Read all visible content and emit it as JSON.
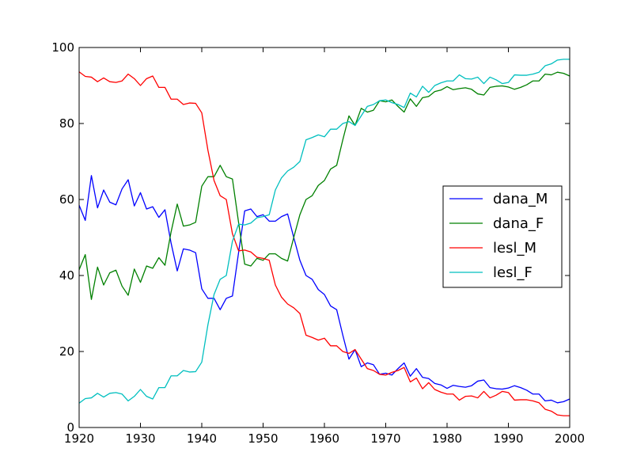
{
  "chart_data": {
    "type": "line",
    "title": "",
    "xlabel": "",
    "ylabel": "",
    "xlim": [
      1920,
      2000
    ],
    "ylim": [
      0,
      100
    ],
    "xticks": [
      1920,
      1930,
      1940,
      1950,
      1960,
      1970,
      1980,
      1990,
      2000
    ],
    "yticks": [
      0,
      20,
      40,
      60,
      80,
      100
    ],
    "grid": false,
    "legend_position": "center-right",
    "x": [
      1920,
      1921,
      1922,
      1923,
      1924,
      1925,
      1926,
      1927,
      1928,
      1929,
      1930,
      1931,
      1932,
      1933,
      1934,
      1935,
      1936,
      1937,
      1938,
      1939,
      1940,
      1941,
      1942,
      1943,
      1944,
      1945,
      1946,
      1947,
      1948,
      1949,
      1950,
      1951,
      1952,
      1953,
      1954,
      1955,
      1956,
      1957,
      1958,
      1959,
      1960,
      1961,
      1962,
      1963,
      1964,
      1965,
      1966,
      1967,
      1968,
      1969,
      1970,
      1971,
      1972,
      1973,
      1974,
      1975,
      1976,
      1977,
      1978,
      1979,
      1980,
      1981,
      1982,
      1983,
      1984,
      1985,
      1986,
      1987,
      1988,
      1989,
      1990,
      1991,
      1992,
      1993,
      1994,
      1995,
      1996,
      1997,
      1998,
      1999,
      2000
    ],
    "series": [
      {
        "name": "dana_M",
        "color": "#0000ff",
        "values": [
          58.5,
          54.5,
          66.3,
          57.8,
          62.5,
          59.3,
          58.6,
          62.8,
          65.2,
          58.3,
          61.8,
          57.5,
          58.1,
          55.3,
          57.3,
          48.5,
          41.2,
          47.0,
          46.7,
          46.0,
          36.5,
          34.0,
          34.0,
          31.0,
          34.0,
          34.6,
          46.0,
          57.0,
          57.5,
          55.5,
          56.0,
          54.3,
          54.3,
          55.5,
          56.2,
          50.0,
          44.0,
          40.0,
          39.0,
          36.3,
          35.0,
          32.0,
          31.0,
          24.3,
          18.0,
          20.5,
          16.0,
          17.0,
          16.5,
          14.0,
          14.3,
          13.8,
          15.5,
          17.0,
          13.5,
          15.5,
          13.2,
          12.9,
          11.6,
          11.2,
          10.3,
          11.1,
          10.8,
          10.6,
          11.0,
          12.2,
          12.5,
          10.5,
          10.2,
          10.1,
          10.4,
          11.0,
          10.5,
          9.8,
          8.8,
          8.8,
          7.0,
          7.2,
          6.5,
          6.8,
          7.5
        ]
      },
      {
        "name": "dana_F",
        "color": "#008000",
        "values": [
          41.5,
          45.5,
          33.7,
          42.2,
          37.5,
          40.7,
          41.4,
          37.2,
          34.8,
          41.7,
          38.2,
          42.5,
          41.9,
          44.7,
          42.7,
          51.5,
          58.8,
          53.0,
          53.3,
          54.0,
          63.5,
          66.0,
          66.0,
          69.0,
          66.0,
          65.4,
          54.0,
          43.0,
          42.5,
          44.5,
          44.0,
          45.7,
          45.7,
          44.5,
          43.8,
          50.0,
          56.0,
          60.0,
          61.0,
          63.7,
          65.0,
          68.0,
          69.0,
          75.7,
          82.0,
          79.5,
          84.0,
          83.0,
          83.5,
          86.0,
          85.7,
          86.2,
          84.5,
          83.0,
          86.5,
          84.5,
          86.8,
          87.1,
          88.4,
          88.8,
          89.7,
          88.9,
          89.2,
          89.4,
          89.0,
          87.8,
          87.5,
          89.5,
          89.8,
          89.9,
          89.6,
          89.0,
          89.5,
          90.2,
          91.2,
          91.2,
          93.0,
          92.8,
          93.5,
          93.2,
          92.5
        ]
      },
      {
        "name": "lesl_M",
        "color": "#ff0000",
        "values": [
          93.6,
          92.4,
          92.2,
          91.0,
          92.0,
          91.0,
          90.8,
          91.2,
          93.0,
          91.8,
          90.0,
          91.8,
          92.5,
          89.5,
          89.5,
          86.4,
          86.4,
          85.0,
          85.4,
          85.3,
          82.8,
          73.0,
          65.0,
          61.0,
          60.0,
          51.0,
          46.5,
          46.7,
          46.2,
          44.8,
          44.5,
          44.0,
          37.5,
          34.3,
          32.5,
          31.5,
          30.0,
          24.3,
          23.7,
          23.0,
          23.5,
          21.5,
          21.5,
          20.0,
          19.5,
          20.5,
          18.0,
          15.5,
          15.0,
          14.0,
          13.8,
          14.5,
          15.0,
          15.8,
          12.0,
          13.0,
          10.2,
          11.8,
          10.0,
          9.3,
          8.8,
          8.8,
          7.2,
          8.2,
          8.3,
          7.8,
          9.5,
          7.8,
          8.5,
          9.5,
          9.2,
          7.2,
          7.3,
          7.3,
          7.0,
          6.5,
          4.8,
          4.3,
          3.3,
          3.1,
          3.1
        ]
      },
      {
        "name": "lesl_F",
        "color": "#00bfbf",
        "values": [
          6.4,
          7.6,
          7.8,
          9.0,
          8.0,
          9.0,
          9.2,
          8.8,
          7.0,
          8.2,
          10.0,
          8.2,
          7.5,
          10.5,
          10.5,
          13.6,
          13.6,
          15.0,
          14.6,
          14.7,
          17.2,
          27.0,
          35.0,
          39.0,
          40.0,
          49.0,
          53.5,
          53.3,
          53.8,
          55.2,
          55.5,
          56.0,
          62.5,
          65.7,
          67.5,
          68.5,
          70.0,
          75.7,
          76.3,
          77.0,
          76.5,
          78.5,
          78.5,
          80.0,
          80.5,
          79.5,
          82.0,
          84.5,
          85.0,
          86.0,
          86.2,
          85.5,
          85.0,
          84.2,
          88.0,
          87.0,
          89.8,
          88.2,
          90.0,
          90.7,
          91.2,
          91.2,
          92.8,
          91.8,
          91.7,
          92.2,
          90.5,
          92.2,
          91.5,
          90.5,
          90.8,
          92.8,
          92.7,
          92.7,
          93.0,
          93.5,
          95.2,
          95.7,
          96.7,
          96.9,
          96.9
        ]
      }
    ]
  }
}
